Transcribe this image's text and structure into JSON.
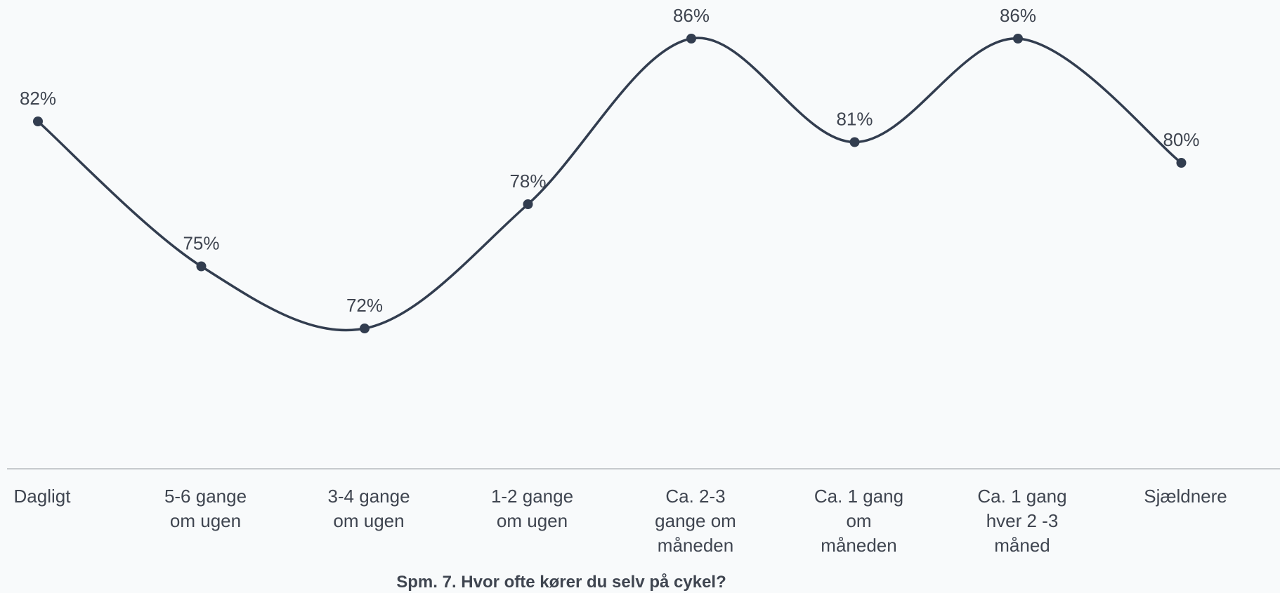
{
  "chart_data": {
    "type": "line",
    "title": "Spm. 7. Hvor ofte kører du selv på cykel?",
    "categories": [
      [
        "Dagligt"
      ],
      [
        "5-6 gange",
        "om ugen"
      ],
      [
        "3-4 gange",
        "om ugen"
      ],
      [
        "1-2 gange",
        "om ugen"
      ],
      [
        "Ca. 2-3",
        "gange om",
        "måneden"
      ],
      [
        "Ca. 1 gang",
        "om",
        "måneden"
      ],
      [
        "Ca. 1 gang",
        "hver 2 -3",
        "måned"
      ],
      [
        "Sjældnere"
      ]
    ],
    "values": [
      82,
      75,
      72,
      78,
      86,
      81,
      86,
      80
    ],
    "value_labels": [
      "82%",
      "75%",
      "72%",
      "78%",
      "86%",
      "81%",
      "86%",
      "80%"
    ],
    "smooth": true,
    "grid": false,
    "legend": "none",
    "colors": {
      "line": "#323d4f",
      "text": "#3f4550",
      "axis": "#b5b9be",
      "background": "#f8fafb"
    }
  }
}
